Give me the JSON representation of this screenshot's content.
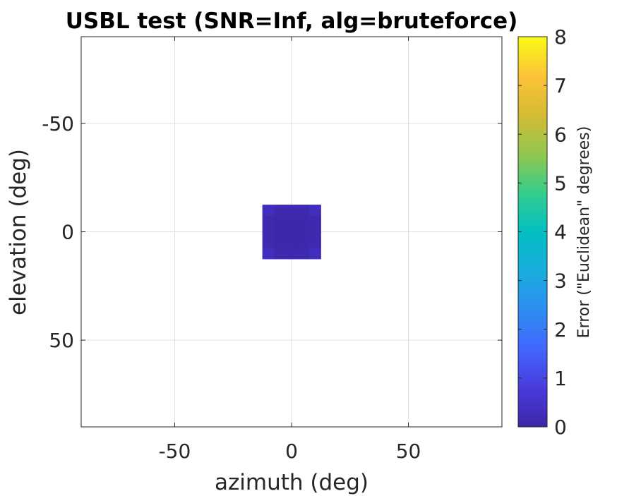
{
  "chart_data": {
    "type": "heatmap",
    "title": "USBL test (SNR=Inf, alg=bruteforce)",
    "xlabel": "azimuth (deg)",
    "ylabel": "elevation (deg)",
    "xlim": [
      -90,
      90
    ],
    "ylim": [
      -90,
      90
    ],
    "y_direction": "reversed",
    "xticks": [
      -50,
      0,
      50
    ],
    "yticks": [
      -50,
      0,
      50
    ],
    "xtick_labels": [
      "-50",
      "0",
      "50"
    ],
    "ytick_labels": [
      "-50",
      "0",
      "50"
    ],
    "grid": true,
    "cells": {
      "x": [
        -10,
        -5,
        0,
        5,
        10
      ],
      "y": [
        -10,
        -5,
        0,
        5,
        10
      ],
      "values": [
        [
          0.3,
          0.1,
          0.1,
          0.1,
          0.3
        ],
        [
          0.1,
          0.05,
          0.05,
          0.05,
          0.1
        ],
        [
          0.1,
          0.05,
          0.0,
          0.05,
          0.1
        ],
        [
          0.1,
          0.05,
          0.05,
          0.05,
          0.1
        ],
        [
          0.3,
          0.1,
          0.1,
          0.1,
          0.3
        ]
      ],
      "cell_size": 5
    },
    "colorbar": {
      "label": "Error (\"Euclidean\" degrees)",
      "range": [
        0,
        8
      ],
      "ticks": [
        0,
        1,
        2,
        3,
        4,
        5,
        6,
        7,
        8
      ],
      "tick_labels": [
        "0",
        "1",
        "2",
        "3",
        "4",
        "5",
        "6",
        "7",
        "8"
      ],
      "colormap": "parula"
    }
  }
}
